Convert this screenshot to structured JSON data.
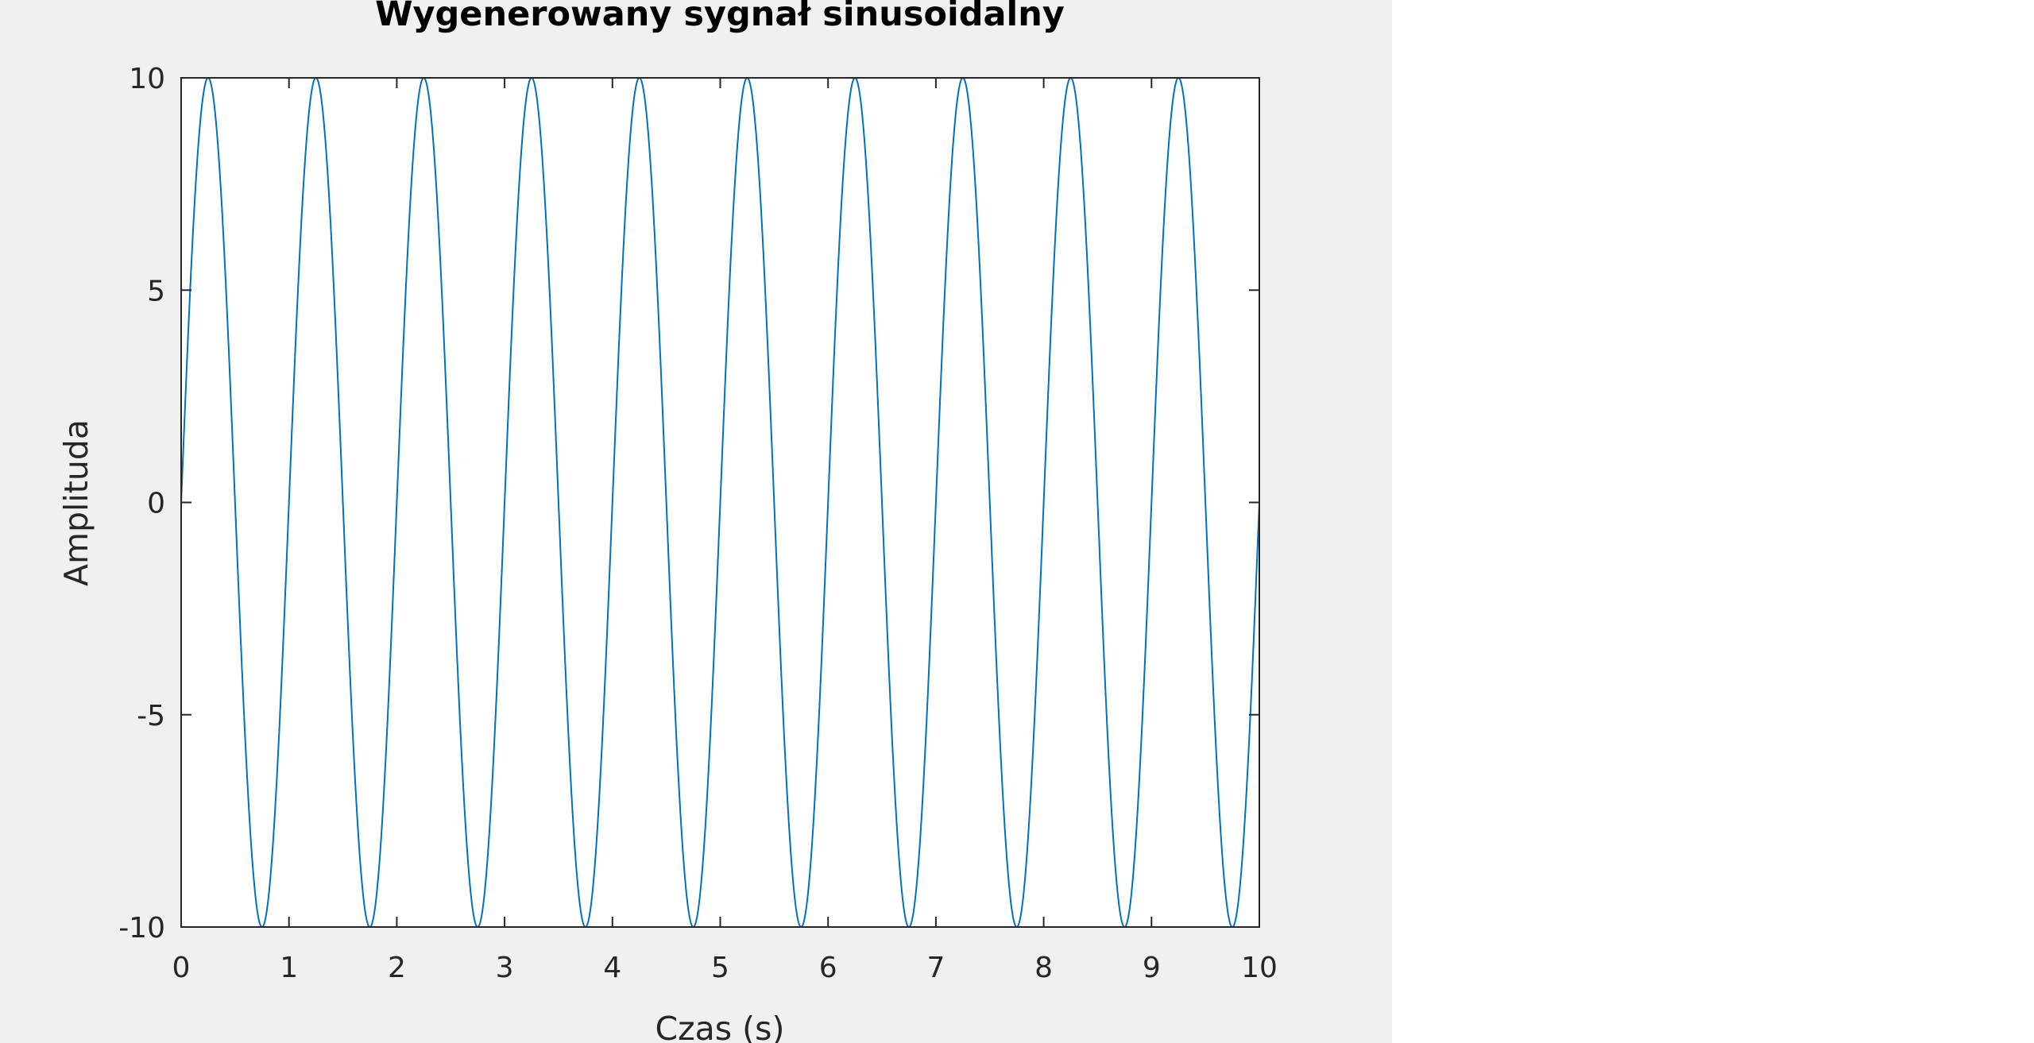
{
  "chart_data": {
    "type": "line",
    "title": "Wygenerowany sygnał sinusoidalny",
    "xlabel": "Czas (s)",
    "ylabel": "Amplituda",
    "xlim": [
      0,
      10
    ],
    "ylim": [
      -10,
      10
    ],
    "xticks": [
      "0",
      "1",
      "2",
      "3",
      "4",
      "5",
      "6",
      "7",
      "8",
      "9",
      "10"
    ],
    "yticks": [
      "10",
      "5",
      "0",
      "-5",
      "-10"
    ],
    "grid": false,
    "legend": "none",
    "series": [
      {
        "function": "sine",
        "amplitude": 10,
        "frequency_hz": 1,
        "phase": 0,
        "x_start": 0,
        "x_end": 10,
        "color": "#0072bd"
      }
    ]
  },
  "colors": {
    "figure_background": "#f0f0f0",
    "axes_background": "#ffffff",
    "axes_edge": "#262626",
    "line": "#0072bd"
  }
}
